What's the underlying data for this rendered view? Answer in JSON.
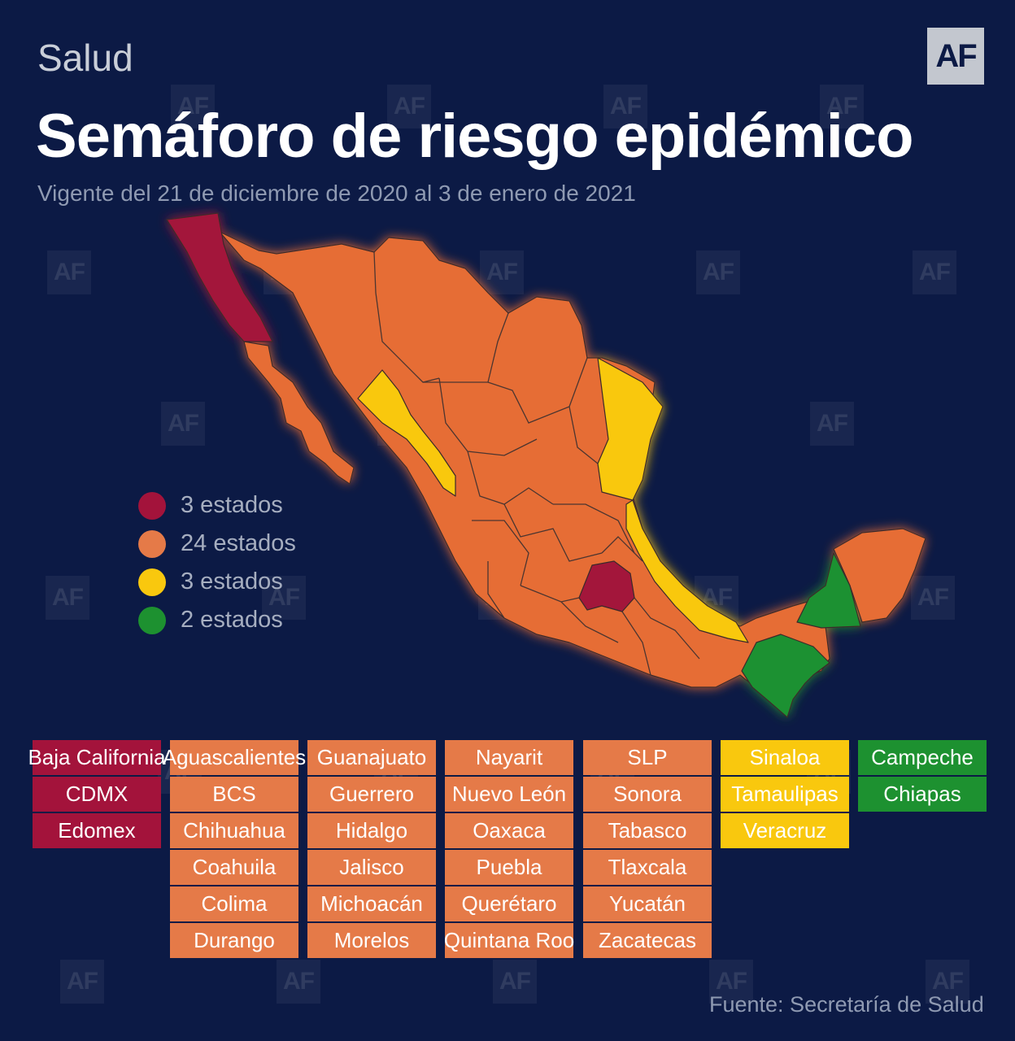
{
  "header": {
    "section": "Salud",
    "logo": "AF",
    "title": "Semáforo de riesgo epidémico",
    "subtitle": "Vigente del 21 de diciembre de 2020 al 3 de enero de 2021"
  },
  "colors": {
    "red": "#a3133b",
    "orange": "#e57a48",
    "yellow": "#f9c80e",
    "green": "#1d9130",
    "background": "#0c1a45"
  },
  "legend": [
    {
      "label": "3 estados",
      "color": "#a3133b"
    },
    {
      "label": "24 estados",
      "color": "#e57a48"
    },
    {
      "label": "3 estados",
      "color": "#f9c80e"
    },
    {
      "label": "2 estados",
      "color": "#1d9130"
    }
  ],
  "states": {
    "red": [
      "Baja California",
      "CDMX",
      "Edomex"
    ],
    "orange_1": [
      "Aguascalientes",
      "BCS",
      "Chihuahua",
      "Coahuila",
      "Colima",
      "Durango"
    ],
    "orange_2": [
      "Guanajuato",
      "Guerrero",
      "Hidalgo",
      "Jalisco",
      "Michoacán",
      "Morelos"
    ],
    "orange_3": [
      "Nayarit",
      "Nuevo León",
      "Oaxaca",
      "Puebla",
      "Querétaro",
      "Quintana Roo"
    ],
    "orange_4": [
      "SLP",
      "Sonora",
      "Tabasco",
      "Tlaxcala",
      "Yucatán",
      "Zacatecas"
    ],
    "yellow": [
      "Sinaloa",
      "Tamaulipas",
      "Veracruz"
    ],
    "green": [
      "Campeche",
      "Chiapas"
    ]
  },
  "watermark": "AF",
  "source": "Fuente: Secretaría de Salud"
}
